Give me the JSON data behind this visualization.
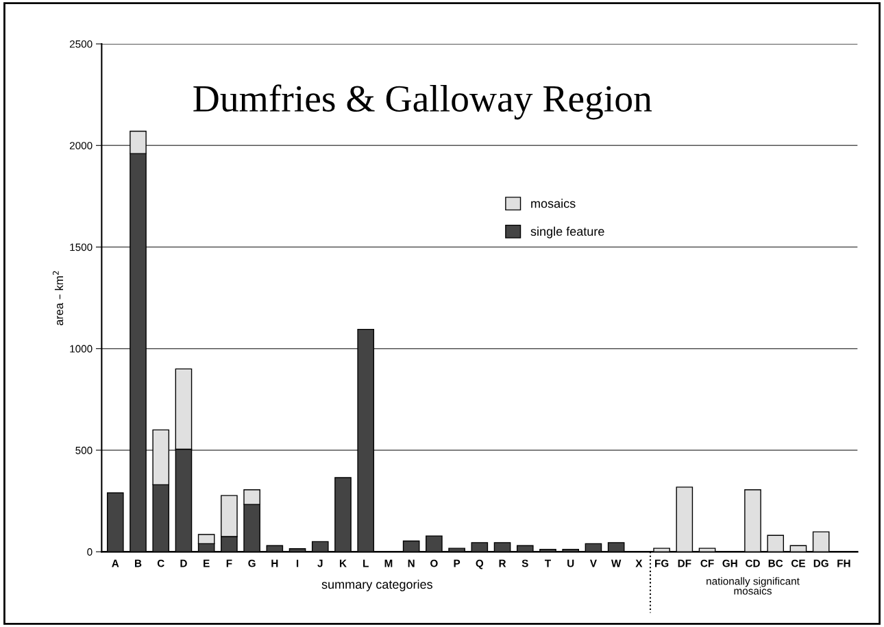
{
  "chart_data": {
    "type": "bar",
    "title": "Dumfries & Galloway Region",
    "xlabel": "summary categories",
    "ylabel": "area – km$^{2}$",
    "categories": [
      "A",
      "B",
      "C",
      "D",
      "E",
      "F",
      "G",
      "H",
      "I",
      "J",
      "K",
      "L",
      "M",
      "N",
      "O",
      "P",
      "Q",
      "R",
      "S",
      "T",
      "U",
      "V",
      "W",
      "X",
      "FG",
      "DF",
      "CF",
      "GH",
      "CD",
      "BC",
      "CE",
      "DG",
      "FH"
    ],
    "series": [
      {
        "name": "single feature",
        "color": "#444444",
        "values": [
          290,
          1960,
          330,
          505,
          40,
          75,
          233,
          30,
          15,
          50,
          365,
          1095,
          0,
          53,
          78,
          17,
          45,
          45,
          30,
          12,
          12,
          40,
          45,
          0,
          null,
          null,
          null,
          null,
          null,
          null,
          null,
          null,
          null
        ]
      },
      {
        "name": "mosaics",
        "color": "#e0e0e0",
        "values": [
          null,
          110,
          270,
          395,
          45,
          202,
          72,
          null,
          null,
          null,
          null,
          null,
          null,
          null,
          null,
          null,
          null,
          null,
          null,
          null,
          null,
          null,
          null,
          null,
          17,
          318,
          17,
          0,
          305,
          81,
          30,
          98,
          0
        ]
      }
    ],
    "stacked": true,
    "ylim": [
      0,
      2500
    ],
    "yticks": [
      0,
      500,
      1000,
      1500,
      2000,
      2500
    ],
    "grid": "y",
    "legend": "top",
    "annotations": [
      "nationally significant\nmosaics"
    ]
  }
}
